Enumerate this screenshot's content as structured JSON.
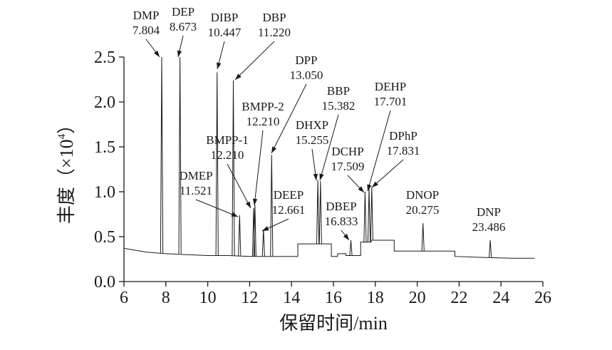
{
  "chart_data": {
    "type": "line",
    "title": "",
    "xlabel": "保留时间/min",
    "ylabel": "丰度（×10⁴）",
    "ylabel_parts": {
      "main": "丰度（×10",
      "sup": "4",
      "close": "）"
    },
    "xlim": [
      6,
      26
    ],
    "ylim": [
      0,
      2.5
    ],
    "xticks": [
      6,
      8,
      10,
      12,
      14,
      16,
      18,
      20,
      22,
      24,
      26
    ],
    "yticks": [
      0,
      0.5,
      1.0,
      1.5,
      2.0,
      2.5
    ],
    "xtick_labels": [
      "6",
      "8",
      "10",
      "12",
      "14",
      "16",
      "18",
      "20",
      "22",
      "24",
      "26"
    ],
    "ytick_labels": [
      "0.0",
      "0.5",
      "1.0",
      "1.5",
      "2.0",
      "2.5"
    ],
    "grid": false,
    "baseline": {
      "x": [
        6.0,
        6.5,
        7.0,
        7.5,
        8.0,
        9.0,
        10.0,
        11.0,
        12.0,
        13.0,
        14.0,
        14.3,
        14.3,
        15.9,
        15.9,
        16.2,
        16.2,
        16.6,
        16.6,
        17.3,
        17.3,
        17.8,
        17.8,
        18.9,
        18.9,
        20.0,
        21.0,
        21.8,
        21.8,
        23.0,
        24.5,
        25.6
      ],
      "y": [
        0.37,
        0.35,
        0.33,
        0.32,
        0.31,
        0.3,
        0.29,
        0.29,
        0.28,
        0.28,
        0.28,
        0.28,
        0.42,
        0.42,
        0.28,
        0.28,
        0.31,
        0.31,
        0.29,
        0.29,
        0.44,
        0.44,
        0.46,
        0.46,
        0.34,
        0.34,
        0.34,
        0.34,
        0.28,
        0.27,
        0.26,
        0.26
      ]
    },
    "peaks": [
      {
        "name": "DMP",
        "rt": "7.804",
        "x": 7.804,
        "height": 2.5
      },
      {
        "name": "DEP",
        "rt": "8.673",
        "x": 8.673,
        "height": 2.5
      },
      {
        "name": "DIBP",
        "rt": "10.447",
        "x": 10.447,
        "height": 2.33
      },
      {
        "name": "DBP",
        "rt": "11.220",
        "x": 11.22,
        "height": 2.24
      },
      {
        "name": "DMEP",
        "rt": "11.521",
        "x": 11.521,
        "height": 0.74
      },
      {
        "name": "BMPP-1",
        "rt": "12.210",
        "x": 12.19,
        "height": 0.82
      },
      {
        "name": "BMPP-2",
        "rt": "12.210",
        "x": 12.25,
        "height": 0.86
      },
      {
        "name": "DEEP",
        "rt": "12.661",
        "x": 12.661,
        "height": 0.58
      },
      {
        "name": "DPP",
        "rt": "13.050",
        "x": 13.05,
        "height": 1.41
      },
      {
        "name": "DHXP",
        "rt": "15.255",
        "x": 15.255,
        "height": 1.13
      },
      {
        "name": "BBP",
        "rt": "15.382",
        "x": 15.382,
        "height": 1.12
      },
      {
        "name": "DBEP",
        "rt": "16.833",
        "x": 16.833,
        "height": 0.46
      },
      {
        "name": "DCHP",
        "rt": "17.509",
        "x": 17.509,
        "height": 1.0
      },
      {
        "name": "DEHP",
        "rt": "17.701",
        "x": 17.701,
        "height": 1.04
      },
      {
        "name": "DPhP",
        "rt": "17.831",
        "x": 17.831,
        "height": 1.05
      },
      {
        "name": "DNOP",
        "rt": "20.275",
        "x": 20.275,
        "height": 0.65
      },
      {
        "name": "DNP",
        "rt": "23.486",
        "x": 23.486,
        "height": 0.46
      }
    ]
  }
}
